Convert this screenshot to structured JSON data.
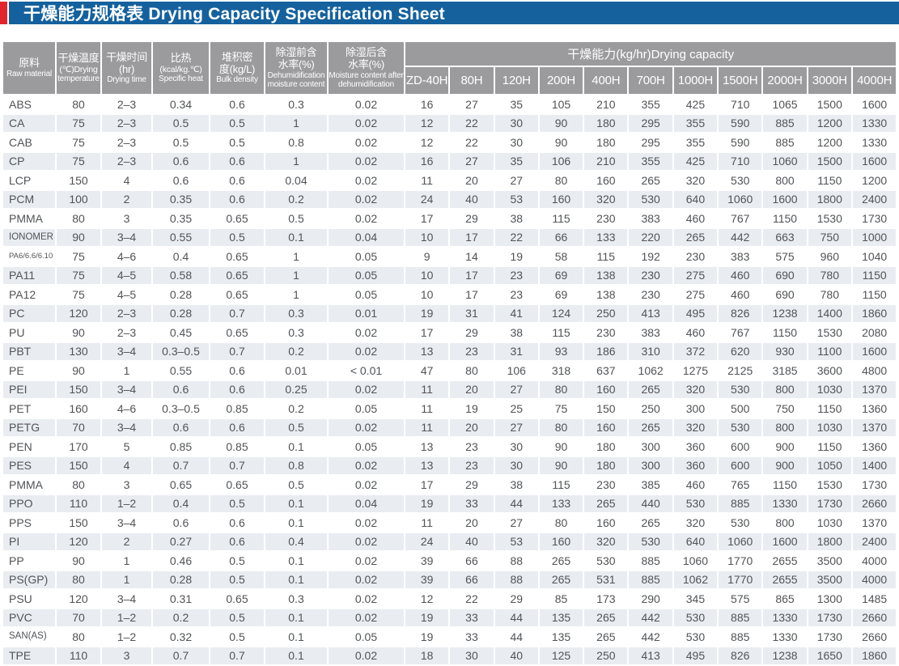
{
  "page": {
    "title": "干燥能力规格表 Drying Capacity Specification Sheet",
    "accent_color": "#e2252c",
    "title_bar_color": "#14619e",
    "header_bg_color": "#9b9b9d",
    "row_stripe_color": "#e9edf2"
  },
  "table": {
    "columns": [
      {
        "zh": "原料",
        "en": "Raw material"
      },
      {
        "zh": "干燥温度",
        "sub": "(℃)Drying",
        "en": "temperature"
      },
      {
        "zh": "干燥时间",
        "zh2": "(hr)",
        "en": "Drying time"
      },
      {
        "zh": "比热",
        "sub": "(kcal/kg.℃)",
        "en": "Specific heat"
      },
      {
        "zh": "堆积密",
        "zh2": "度(kg/L)",
        "en": "Bulk density"
      },
      {
        "zh": "除湿前含",
        "zh2": "水率(%)",
        "en": "Dehumidification moisture content"
      },
      {
        "zh": "除湿后含",
        "zh2": "水率(%)",
        "en": "Moisture content after dehumidification"
      }
    ],
    "capacity_group_label": "干燥能力(kg/hr)Drying capacity",
    "capacity_models": [
      "ZD-40H",
      "80H",
      "120H",
      "200H",
      "400H",
      "700H",
      "1000H",
      "1500H",
      "2000H",
      "3000H",
      "4000H"
    ],
    "rows": [
      [
        "ABS",
        "80",
        "2–3",
        "0.34",
        "0.6",
        "0.3",
        "0.02",
        "16",
        "27",
        "35",
        "105",
        "210",
        "355",
        "425",
        "710",
        "1065",
        "1500",
        "1600"
      ],
      [
        "CA",
        "75",
        "2–3",
        "0.5",
        "0.5",
        "1",
        "0.02",
        "12",
        "22",
        "30",
        "90",
        "180",
        "295",
        "355",
        "590",
        "885",
        "1200",
        "1330"
      ],
      [
        "CAB",
        "75",
        "2–3",
        "0.5",
        "0.5",
        "0.8",
        "0.02",
        "12",
        "22",
        "30",
        "90",
        "180",
        "295",
        "355",
        "590",
        "885",
        "1200",
        "1330"
      ],
      [
        "CP",
        "75",
        "2–3",
        "0.6",
        "0.6",
        "1",
        "0.02",
        "16",
        "27",
        "35",
        "106",
        "210",
        "355",
        "425",
        "710",
        "1060",
        "1500",
        "1600"
      ],
      [
        "LCP",
        "150",
        "4",
        "0.6",
        "0.6",
        "0.04",
        "0.02",
        "11",
        "20",
        "27",
        "80",
        "160",
        "265",
        "320",
        "530",
        "800",
        "1150",
        "1200"
      ],
      [
        "PCM",
        "100",
        "2",
        "0.35",
        "0.6",
        "0.2",
        "0.02",
        "24",
        "40",
        "53",
        "160",
        "320",
        "530",
        "640",
        "1060",
        "1600",
        "1800",
        "2400"
      ],
      [
        "PMMA",
        "80",
        "3",
        "0.35",
        "0.65",
        "0.5",
        "0.02",
        "17",
        "29",
        "38",
        "115",
        "230",
        "383",
        "460",
        "767",
        "1150",
        "1530",
        "1730"
      ],
      [
        "IONOMER",
        "90",
        "3–4",
        "0.55",
        "0.5",
        "0.1",
        "0.04",
        "10",
        "17",
        "22",
        "66",
        "133",
        "220",
        "265",
        "442",
        "663",
        "750",
        "1000"
      ],
      [
        "PA6/6.6/6.10",
        "75",
        "4–6",
        "0.4",
        "0.65",
        "1",
        "0.05",
        "9",
        "14",
        "19",
        "58",
        "115",
        "192",
        "230",
        "383",
        "575",
        "960",
        "1040"
      ],
      [
        "PA11",
        "75",
        "4–5",
        "0.58",
        "0.65",
        "1",
        "0.05",
        "10",
        "17",
        "23",
        "69",
        "138",
        "230",
        "275",
        "460",
        "690",
        "780",
        "1150"
      ],
      [
        "PA12",
        "75",
        "4–5",
        "0.28",
        "0.65",
        "1",
        "0.05",
        "10",
        "17",
        "23",
        "69",
        "138",
        "230",
        "275",
        "460",
        "690",
        "780",
        "1150"
      ],
      [
        "PC",
        "120",
        "2–3",
        "0.28",
        "0.7",
        "0.3",
        "0.01",
        "19",
        "31",
        "41",
        "124",
        "250",
        "413",
        "495",
        "826",
        "1238",
        "1400",
        "1860"
      ],
      [
        "PU",
        "90",
        "2–3",
        "0.45",
        "0.65",
        "0.3",
        "0.02",
        "17",
        "29",
        "38",
        "115",
        "230",
        "383",
        "460",
        "767",
        "1150",
        "1530",
        "2080"
      ],
      [
        "PBT",
        "130",
        "3–4",
        "0.3–0.5",
        "0.7",
        "0.2",
        "0.02",
        "13",
        "23",
        "31",
        "93",
        "186",
        "310",
        "372",
        "620",
        "930",
        "1100",
        "1600"
      ],
      [
        "PE",
        "90",
        "1",
        "0.55",
        "0.6",
        "0.01",
        "< 0.01",
        "47",
        "80",
        "106",
        "318",
        "637",
        "1062",
        "1275",
        "2125",
        "3185",
        "3600",
        "4800"
      ],
      [
        "PEI",
        "150",
        "3–4",
        "0.6",
        "0.6",
        "0.25",
        "0.02",
        "11",
        "20",
        "27",
        "80",
        "160",
        "265",
        "320",
        "530",
        "800",
        "1030",
        "1370"
      ],
      [
        "PET",
        "160",
        "4–6",
        "0.3–0.5",
        "0.85",
        "0.2",
        "0.05",
        "11",
        "19",
        "25",
        "75",
        "150",
        "250",
        "300",
        "500",
        "750",
        "1150",
        "1360"
      ],
      [
        "PETG",
        "70",
        "3–4",
        "0.6",
        "0.6",
        "0.5",
        "0.02",
        "11",
        "20",
        "27",
        "80",
        "160",
        "265",
        "320",
        "530",
        "800",
        "1030",
        "1370"
      ],
      [
        "PEN",
        "170",
        "5",
        "0.85",
        "0.85",
        "0.1",
        "0.05",
        "13",
        "23",
        "30",
        "90",
        "180",
        "300",
        "360",
        "600",
        "900",
        "1150",
        "1360"
      ],
      [
        "PES",
        "150",
        "4",
        "0.7",
        "0.7",
        "0.8",
        "0.02",
        "13",
        "23",
        "30",
        "90",
        "180",
        "300",
        "360",
        "600",
        "900",
        "1050",
        "1400"
      ],
      [
        "PMMA",
        "80",
        "3",
        "0.65",
        "0.65",
        "0.5",
        "0.02",
        "17",
        "29",
        "38",
        "115",
        "230",
        "385",
        "460",
        "765",
        "1150",
        "1530",
        "1730"
      ],
      [
        "PPO",
        "110",
        "1–2",
        "0.4",
        "0.5",
        "0.1",
        "0.04",
        "19",
        "33",
        "44",
        "133",
        "265",
        "440",
        "530",
        "885",
        "1330",
        "1730",
        "2660"
      ],
      [
        "PPS",
        "150",
        "3–4",
        "0.6",
        "0.6",
        "0.1",
        "0.02",
        "11",
        "20",
        "27",
        "80",
        "160",
        "265",
        "320",
        "530",
        "800",
        "1030",
        "1370"
      ],
      [
        "PI",
        "120",
        "2",
        "0.27",
        "0.6",
        "0.4",
        "0.02",
        "24",
        "40",
        "53",
        "160",
        "320",
        "530",
        "640",
        "1060",
        "1600",
        "1800",
        "2400"
      ],
      [
        "PP",
        "90",
        "1",
        "0.46",
        "0.5",
        "0.1",
        "0.02",
        "39",
        "66",
        "88",
        "265",
        "530",
        "885",
        "1060",
        "1770",
        "2655",
        "3500",
        "4000"
      ],
      [
        "PS(GP)",
        "80",
        "1",
        "0.28",
        "0.5",
        "0.1",
        "0.02",
        "39",
        "66",
        "88",
        "265",
        "531",
        "885",
        "1062",
        "1770",
        "2655",
        "3500",
        "4000"
      ],
      [
        "PSU",
        "120",
        "3–4",
        "0.31",
        "0.65",
        "0.3",
        "0.02",
        "12",
        "22",
        "29",
        "85",
        "173",
        "290",
        "345",
        "575",
        "865",
        "1300",
        "1485"
      ],
      [
        "PVC",
        "70",
        "1–2",
        "0.2",
        "0.5",
        "0.1",
        "0.02",
        "19",
        "33",
        "44",
        "135",
        "265",
        "442",
        "530",
        "885",
        "1330",
        "1730",
        "2660"
      ],
      [
        "SAN(AS)",
        "80",
        "1–2",
        "0.32",
        "0.5",
        "0.1",
        "0.05",
        "19",
        "33",
        "44",
        "135",
        "265",
        "442",
        "530",
        "885",
        "1330",
        "1730",
        "2660"
      ],
      [
        "TPE",
        "110",
        "3",
        "0.7",
        "0.7",
        "0.1",
        "0.02",
        "18",
        "30",
        "40",
        "125",
        "250",
        "413",
        "495",
        "826",
        "1238",
        "1650",
        "1860"
      ]
    ]
  }
}
